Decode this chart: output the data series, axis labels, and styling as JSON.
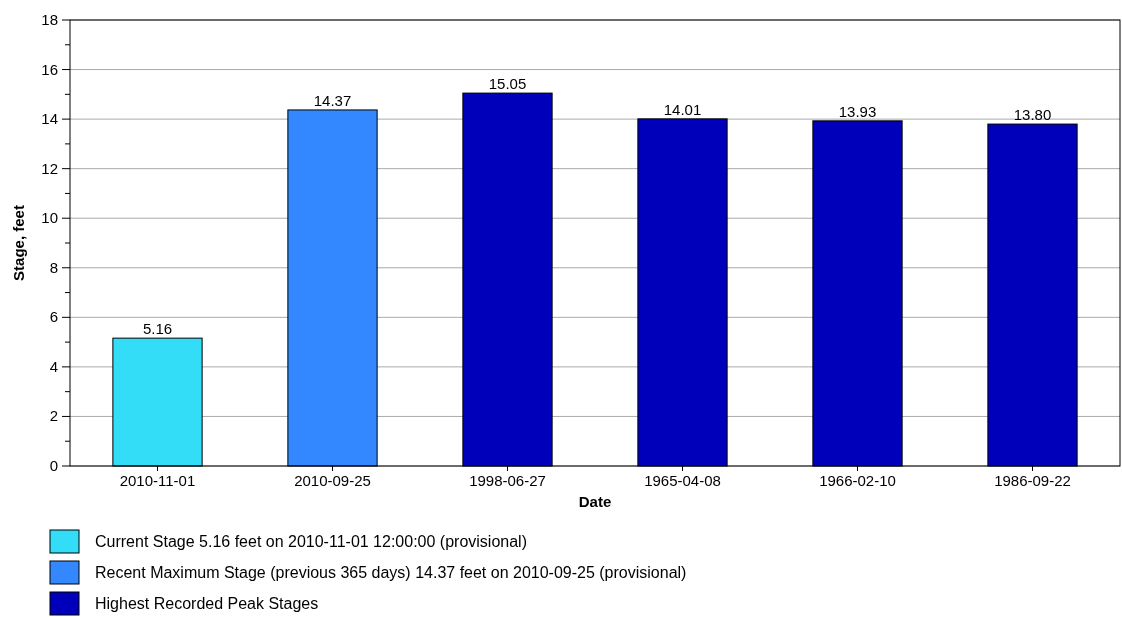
{
  "chart_data": {
    "type": "bar",
    "xlabel": "Date",
    "ylabel": "Stage, feet",
    "categories": [
      "2010-11-01",
      "2010-09-25",
      "1998-06-27",
      "1965-04-08",
      "1966-02-10",
      "1986-09-22"
    ],
    "series": [
      {
        "name": "Current Stage 5.16 feet on 2010-11-01 12:00:00 (provisional)",
        "color": "#33ddf8",
        "values": [
          5.16,
          null,
          null,
          null,
          null,
          null
        ],
        "value_labels": [
          "5.16",
          null,
          null,
          null,
          null,
          null
        ]
      },
      {
        "name": "Recent Maximum Stage (previous 365 days) 14.37 feet on 2010-09-25 (provisional)",
        "color": "#3388ff",
        "values": [
          null,
          14.37,
          null,
          null,
          null,
          null
        ],
        "value_labels": [
          null,
          "14.37",
          null,
          null,
          null,
          null
        ]
      },
      {
        "name": "Highest Recorded Peak Stages",
        "color": "#0000bb",
        "values": [
          null,
          null,
          15.05,
          14.01,
          13.93,
          13.8
        ],
        "value_labels": [
          null,
          null,
          "15.05",
          "14.01",
          "13.93",
          "13.80"
        ]
      }
    ],
    "ylim": [
      0,
      18
    ],
    "yticks": [
      0,
      {
        "value": 1,
        "label": null
      },
      2,
      {
        "value": 3,
        "label": null
      },
      4,
      {
        "value": 5,
        "label": null
      },
      6,
      {
        "value": 7,
        "label": null
      },
      8,
      {
        "value": 9,
        "label": null
      },
      10,
      {
        "value": 11,
        "label": null
      },
      12,
      {
        "value": 13,
        "label": null
      },
      14,
      {
        "value": 15,
        "label": null
      },
      16,
      {
        "value": 17,
        "label": null
      },
      18
    ],
    "grid": "y",
    "legend": "bottom"
  }
}
